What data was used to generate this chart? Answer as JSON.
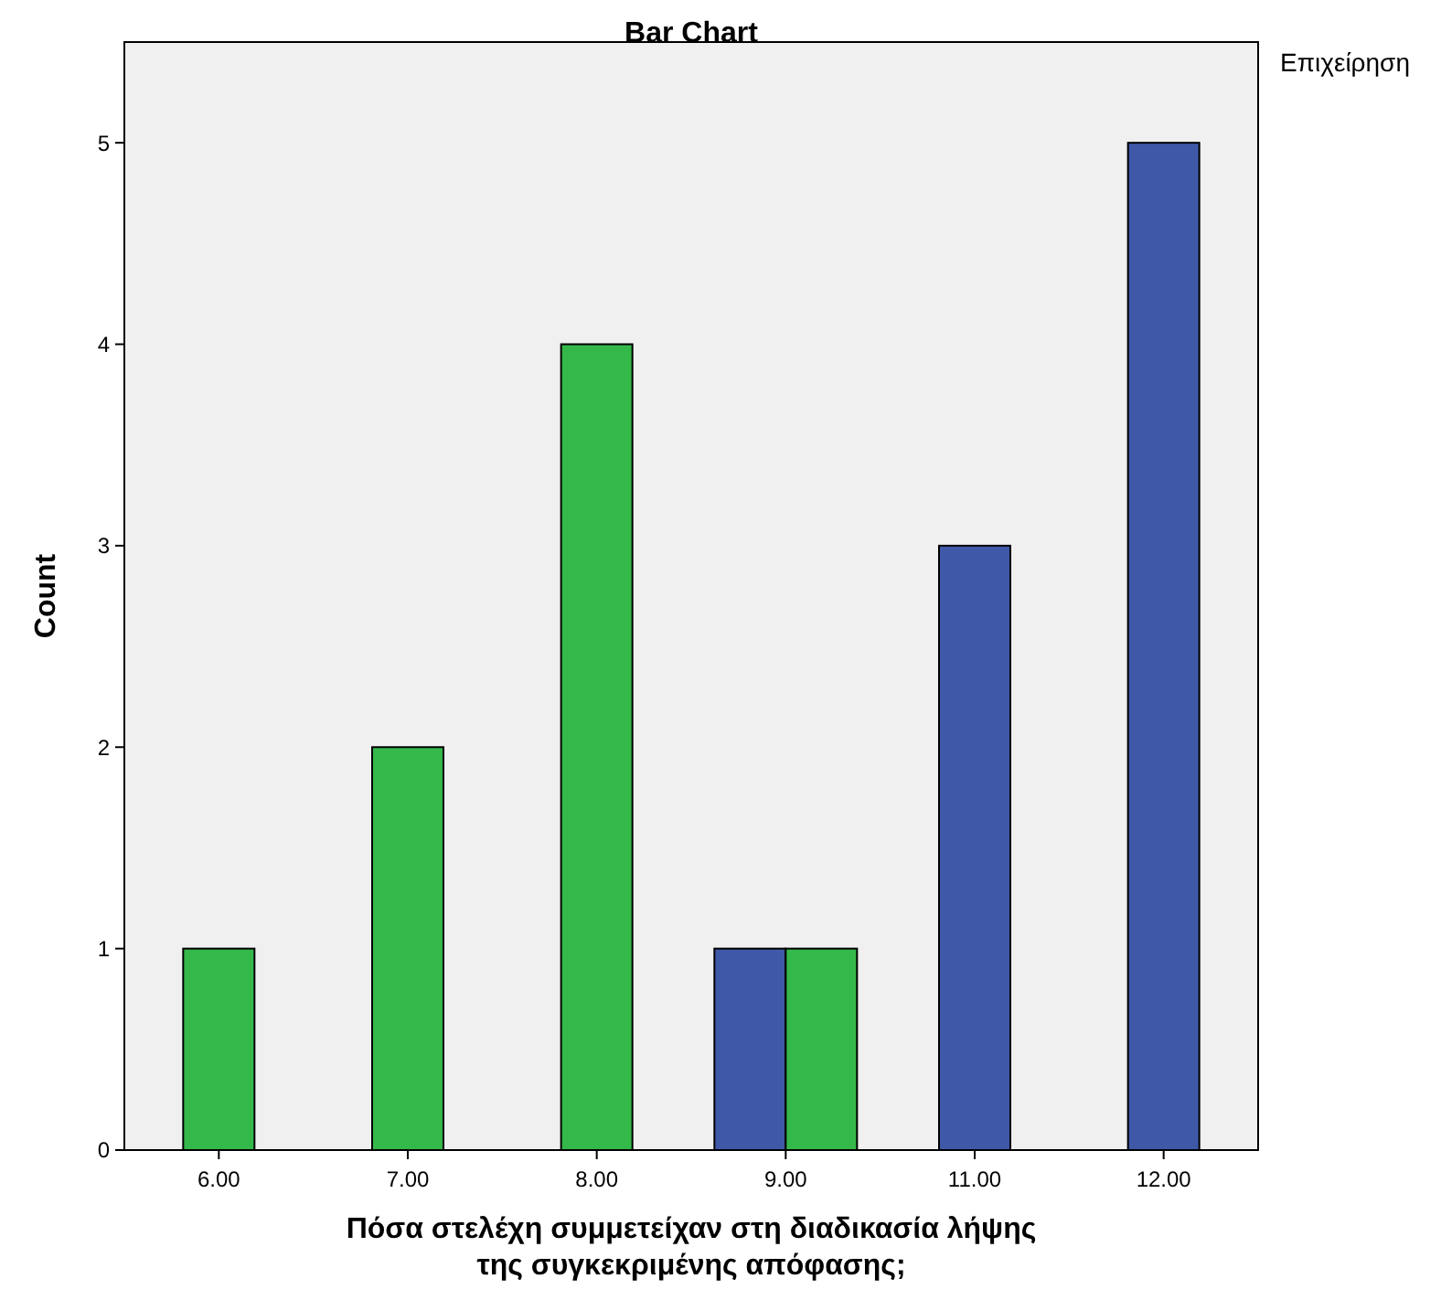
{
  "chart_data": {
    "type": "bar",
    "title": "Bar Chart",
    "xlabel": "Πόσα στελέχη συμμετείχαν στη διαδικασία λήψης της συγκεκριμένης απόφασης;",
    "ylabel": "Count",
    "legend_title": "Επιχείρηση",
    "categories": [
      "6.00",
      "7.00",
      "8.00",
      "9.00",
      "11.00",
      "12.00"
    ],
    "series": [
      {
        "color": "#3f58a8",
        "values": [
          null,
          null,
          null,
          1,
          3,
          5
        ]
      },
      {
        "color": "#35b84a",
        "values": [
          1,
          2,
          4,
          1,
          null,
          null
        ]
      }
    ],
    "ylim": [
      0,
      5.5
    ],
    "yticks": [
      0,
      1,
      2,
      3,
      4,
      5
    ],
    "grid": false
  }
}
